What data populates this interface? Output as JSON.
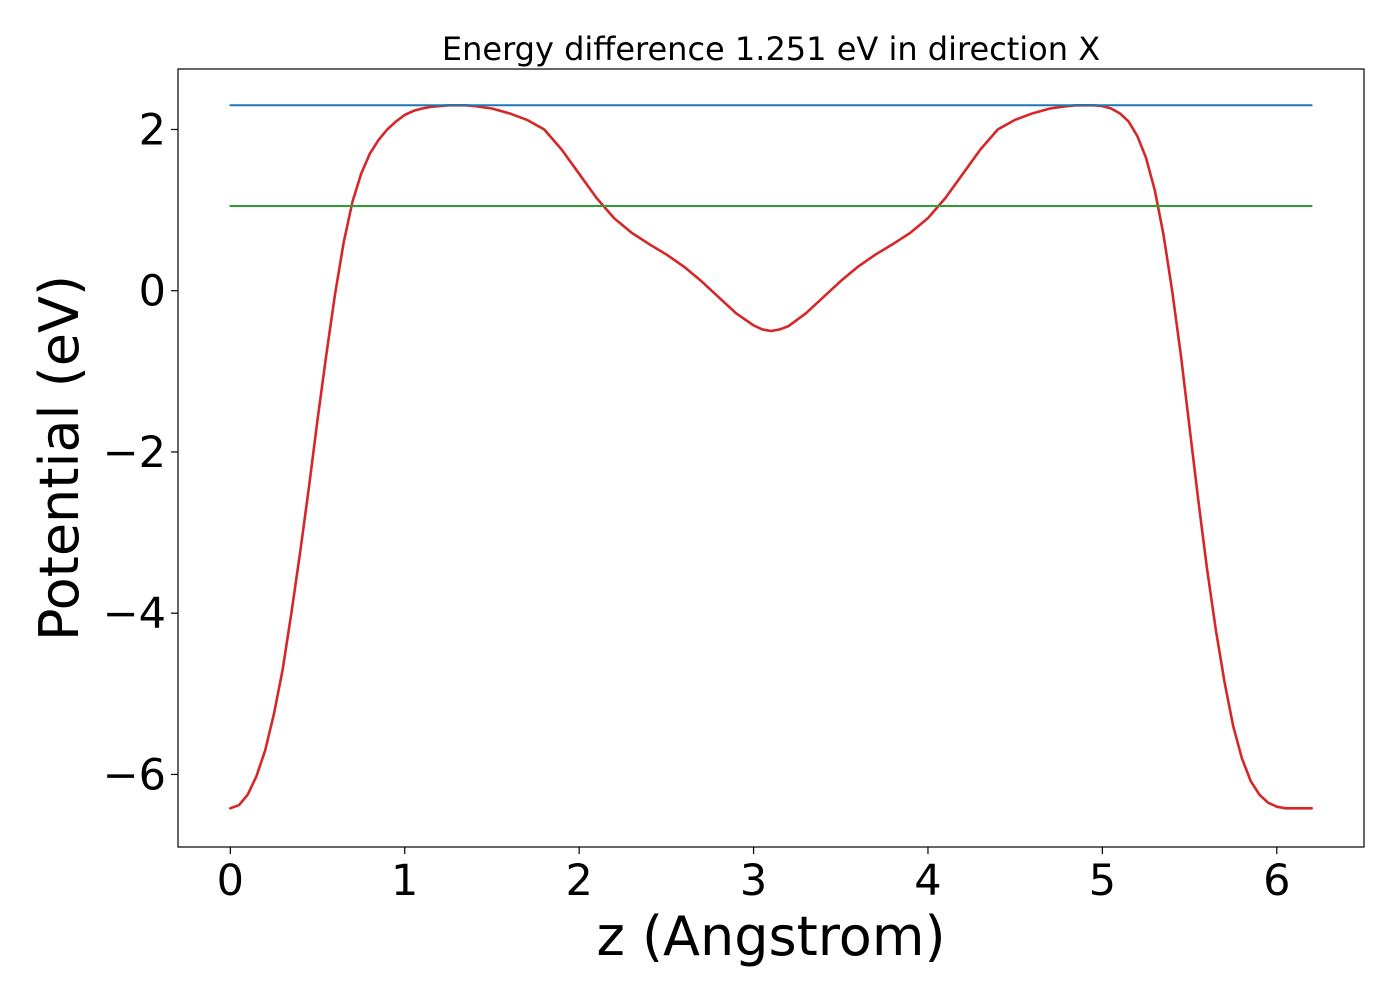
{
  "chart_data": {
    "type": "line",
    "title": "Energy difference 1.251 eV in direction X",
    "xlabel": "z (Angstrom)",
    "ylabel": "Potential (eV)",
    "xlim": [
      -0.3,
      6.5
    ],
    "ylim": [
      -6.9,
      2.75
    ],
    "xticks": [
      0,
      1,
      2,
      3,
      4,
      5,
      6
    ],
    "xtick_labels": [
      "0",
      "1",
      "2",
      "3",
      "4",
      "5",
      "6"
    ],
    "yticks": [
      -6,
      -4,
      -2,
      0,
      2
    ],
    "ytick_labels": [
      "−6",
      "−4",
      "−2",
      "0",
      "2"
    ],
    "grid": false,
    "series": [
      {
        "color": "#d62728",
        "x": [
          0,
          0.05,
          0.1,
          0.15,
          0.2,
          0.25,
          0.3,
          0.35,
          0.4,
          0.45,
          0.5,
          0.55,
          0.6,
          0.65,
          0.7,
          0.75,
          0.8,
          0.85,
          0.9,
          0.95,
          1.0,
          1.05,
          1.1,
          1.15,
          1.2,
          1.25,
          1.3,
          1.35,
          1.4,
          1.5,
          1.6,
          1.7,
          1.8,
          1.9,
          2.0,
          2.1,
          2.2,
          2.3,
          2.4,
          2.5,
          2.6,
          2.7,
          2.8,
          2.9,
          3.0,
          3.05,
          3.1,
          3.15,
          3.2,
          3.3,
          3.4,
          3.5,
          3.6,
          3.7,
          3.8,
          3.9,
          4.0,
          4.1,
          4.2,
          4.3,
          4.4,
          4.5,
          4.6,
          4.7,
          4.8,
          4.85,
          4.9,
          4.95,
          5.0,
          5.05,
          5.1,
          5.15,
          5.2,
          5.25,
          5.3,
          5.35,
          5.4,
          5.45,
          5.5,
          5.55,
          5.6,
          5.65,
          5.7,
          5.75,
          5.8,
          5.85,
          5.9,
          5.95,
          6.0,
          6.05,
          6.1,
          6.15,
          6.2
        ],
        "y": [
          -6.42,
          -6.38,
          -6.25,
          -6.02,
          -5.7,
          -5.25,
          -4.7,
          -4.0,
          -3.25,
          -2.45,
          -1.6,
          -0.8,
          -0.05,
          0.6,
          1.1,
          1.45,
          1.7,
          1.87,
          2.0,
          2.1,
          2.18,
          2.23,
          2.26,
          2.28,
          2.29,
          2.3,
          2.3,
          2.3,
          2.29,
          2.26,
          2.2,
          2.12,
          2.0,
          1.75,
          1.45,
          1.15,
          0.9,
          0.72,
          0.58,
          0.45,
          0.3,
          0.12,
          -0.08,
          -0.28,
          -0.43,
          -0.48,
          -0.5,
          -0.48,
          -0.44,
          -0.28,
          -0.08,
          0.12,
          0.3,
          0.45,
          0.58,
          0.72,
          0.9,
          1.15,
          1.45,
          1.75,
          2.0,
          2.12,
          2.2,
          2.26,
          2.29,
          2.3,
          2.3,
          2.3,
          2.29,
          2.26,
          2.2,
          2.1,
          1.92,
          1.65,
          1.25,
          0.7,
          0.0,
          -0.8,
          -1.7,
          -2.6,
          -3.45,
          -4.2,
          -4.85,
          -5.4,
          -5.8,
          -6.08,
          -6.25,
          -6.35,
          -6.4,
          -6.42,
          -6.42,
          -6.42,
          -6.42
        ]
      },
      {
        "color": "#1f77b4",
        "x": [
          0,
          6.2
        ],
        "y": [
          2.3,
          2.3
        ]
      },
      {
        "color": "#2ca02c",
        "x": [
          0,
          6.2
        ],
        "y": [
          1.05,
          1.05
        ]
      }
    ]
  }
}
